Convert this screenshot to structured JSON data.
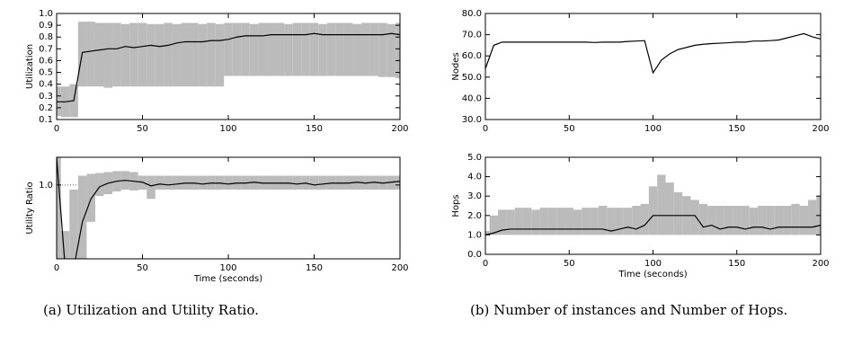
{
  "chart_data": [
    {
      "type": "line",
      "ylabel": "Utilization",
      "xlim": [
        0,
        200
      ],
      "xticks": [
        0,
        50,
        100,
        150,
        200
      ],
      "ylim": [
        0.1,
        1.0
      ],
      "yticks": [
        0.1,
        0.2,
        0.3,
        0.4,
        0.5,
        0.6,
        0.7,
        0.8,
        0.9,
        {
          "value": 1,
          "label": "1.0"
        }
      ],
      "color": "#000000",
      "band_color": "#bbbbbb",
      "x": [
        0,
        5,
        10,
        15,
        20,
        25,
        30,
        35,
        40,
        45,
        50,
        55,
        60,
        65,
        70,
        75,
        80,
        85,
        90,
        95,
        100,
        105,
        110,
        115,
        120,
        125,
        130,
        135,
        140,
        145,
        150,
        155,
        160,
        165,
        170,
        175,
        180,
        185,
        190,
        195,
        200
      ],
      "values": [
        0.25,
        0.25,
        0.26,
        0.67,
        0.68,
        0.69,
        0.7,
        0.7,
        0.72,
        0.71,
        0.72,
        0.73,
        0.72,
        0.73,
        0.75,
        0.76,
        0.76,
        0.76,
        0.77,
        0.77,
        0.78,
        0.8,
        0.81,
        0.81,
        0.81,
        0.82,
        0.82,
        0.82,
        0.82,
        0.82,
        0.83,
        0.82,
        0.82,
        0.82,
        0.82,
        0.82,
        0.82,
        0.82,
        0.82,
        0.83,
        0.82
      ],
      "upper": [
        0.38,
        0.38,
        0.4,
        0.93,
        0.93,
        0.92,
        0.92,
        0.92,
        0.91,
        0.92,
        0.92,
        0.91,
        0.91,
        0.92,
        0.91,
        0.92,
        0.92,
        0.91,
        0.92,
        0.91,
        0.92,
        0.92,
        0.92,
        0.91,
        0.92,
        0.92,
        0.92,
        0.91,
        0.92,
        0.92,
        0.92,
        0.91,
        0.92,
        0.92,
        0.92,
        0.91,
        0.92,
        0.92,
        0.92,
        0.91,
        0.92
      ],
      "lower": [
        0.13,
        0.12,
        0.12,
        0.38,
        0.38,
        0.38,
        0.37,
        0.38,
        0.38,
        0.38,
        0.38,
        0.38,
        0.38,
        0.38,
        0.38,
        0.38,
        0.38,
        0.38,
        0.38,
        0.38,
        0.47,
        0.47,
        0.47,
        0.47,
        0.47,
        0.47,
        0.47,
        0.47,
        0.47,
        0.47,
        0.47,
        0.47,
        0.47,
        0.47,
        0.47,
        0.47,
        0.47,
        0.47,
        0.46,
        0.46,
        0.45
      ]
    },
    {
      "type": "line",
      "ylabel": "Utility Ratio",
      "xlabel": "Time (seconds)",
      "xlim": [
        0,
        200
      ],
      "xticks": [
        0,
        50,
        100,
        150,
        200
      ],
      "ylim": [
        0.2,
        1.3
      ],
      "yticks": [
        {
          "value": 1,
          "label": "1.0"
        }
      ],
      "grid": true,
      "color": "#000000",
      "band_color": "#bbbbbb",
      "x": [
        0,
        5,
        10,
        15,
        20,
        25,
        30,
        35,
        40,
        45,
        50,
        55,
        60,
        65,
        70,
        75,
        80,
        85,
        90,
        95,
        100,
        105,
        110,
        115,
        120,
        125,
        130,
        135,
        140,
        145,
        150,
        155,
        160,
        165,
        170,
        175,
        180,
        185,
        190,
        195,
        200
      ],
      "values": [
        1.3,
        0.1,
        0.1,
        0.6,
        0.85,
        0.98,
        1.02,
        1.04,
        1.05,
        1.04,
        1.03,
        0.99,
        1.01,
        1.0,
        1.01,
        1.02,
        1.02,
        1.01,
        1.02,
        1.02,
        1.01,
        1.02,
        1.02,
        1.03,
        1.02,
        1.02,
        1.02,
        1.02,
        1.01,
        1.02,
        1.0,
        1.01,
        1.02,
        1.02,
        1.02,
        1.03,
        1.02,
        1.03,
        1.02,
        1.03,
        1.04
      ],
      "upper": [
        1.3,
        0.5,
        0.95,
        1.1,
        1.12,
        1.13,
        1.14,
        1.15,
        1.15,
        1.14,
        1.1,
        1.1,
        1.1,
        1.1,
        1.1,
        1.1,
        1.1,
        1.1,
        1.1,
        1.1,
        1.1,
        1.1,
        1.1,
        1.1,
        1.1,
        1.1,
        1.1,
        1.1,
        1.1,
        1.1,
        1.1,
        1.1,
        1.1,
        1.1,
        1.1,
        1.1,
        1.1,
        1.1,
        1.1,
        1.1,
        1.1
      ],
      "lower": [
        0.1,
        0.1,
        0.1,
        0.2,
        0.6,
        0.88,
        0.9,
        0.93,
        0.95,
        0.94,
        0.95,
        0.85,
        0.95,
        0.95,
        0.95,
        0.95,
        0.95,
        0.95,
        0.95,
        0.95,
        0.95,
        0.95,
        0.95,
        0.95,
        0.95,
        0.95,
        0.95,
        0.95,
        0.95,
        0.95,
        0.95,
        0.95,
        0.95,
        0.95,
        0.95,
        0.95,
        0.95,
        0.95,
        0.95,
        0.95,
        0.95
      ]
    },
    {
      "type": "line",
      "ylabel": "Nodes",
      "xlim": [
        0,
        200
      ],
      "xticks": [
        0,
        50,
        100,
        150,
        200
      ],
      "ylim": [
        30,
        80
      ],
      "yticks": [
        {
          "value": 30,
          "label": "30.0"
        },
        {
          "value": 40,
          "label": "40.0"
        },
        {
          "value": 50,
          "label": "50.0"
        },
        {
          "value": 60,
          "label": "60.0"
        },
        {
          "value": 70,
          "label": "70.0"
        },
        {
          "value": 80,
          "label": "80.0"
        }
      ],
      "color": "#000000",
      "x": [
        0,
        5,
        10,
        15,
        20,
        25,
        30,
        35,
        40,
        45,
        50,
        55,
        60,
        65,
        70,
        75,
        80,
        85,
        90,
        95,
        100,
        105,
        110,
        115,
        120,
        125,
        130,
        135,
        140,
        145,
        150,
        155,
        160,
        165,
        170,
        175,
        180,
        185,
        190,
        195,
        200
      ],
      "values": [
        54,
        65,
        66.5,
        66.5,
        66.5,
        66.5,
        66.5,
        66.5,
        66.5,
        66.5,
        66.5,
        66.5,
        66.5,
        66.3,
        66.5,
        66.5,
        66.5,
        66.8,
        67,
        67.2,
        52,
        58,
        61,
        63,
        64,
        65,
        65.5,
        65.8,
        66,
        66.2,
        66.5,
        66.5,
        67,
        67,
        67.2,
        67.5,
        68.5,
        69.5,
        70.5,
        69,
        68
      ]
    },
    {
      "type": "line",
      "ylabel": "Hops",
      "xlabel": "Time (seconds)",
      "xlim": [
        0,
        200
      ],
      "xticks": [
        0,
        50,
        100,
        150,
        200
      ],
      "ylim": [
        0,
        5
      ],
      "yticks": [
        {
          "value": 0,
          "label": "0.0"
        },
        {
          "value": 1,
          "label": "1.0"
        },
        {
          "value": 2,
          "label": "2.0"
        },
        {
          "value": 3,
          "label": "3.0"
        },
        {
          "value": 4,
          "label": "4.0"
        },
        {
          "value": 5,
          "label": "5.0"
        }
      ],
      "color": "#000000",
      "band_color": "#bbbbbb",
      "x": [
        0,
        5,
        10,
        15,
        20,
        25,
        30,
        35,
        40,
        45,
        50,
        55,
        60,
        65,
        70,
        75,
        80,
        85,
        90,
        95,
        100,
        105,
        110,
        115,
        120,
        125,
        130,
        135,
        140,
        145,
        150,
        155,
        160,
        165,
        170,
        175,
        180,
        185,
        190,
        195,
        200
      ],
      "values": [
        1.0,
        1.1,
        1.25,
        1.3,
        1.3,
        1.3,
        1.3,
        1.3,
        1.3,
        1.3,
        1.3,
        1.3,
        1.3,
        1.3,
        1.3,
        1.2,
        1.3,
        1.4,
        1.3,
        1.5,
        2.0,
        2.0,
        2.0,
        2.0,
        2.0,
        2.0,
        1.4,
        1.5,
        1.3,
        1.4,
        1.4,
        1.3,
        1.4,
        1.4,
        1.3,
        1.4,
        1.4,
        1.4,
        1.4,
        1.4,
        1.5
      ],
      "upper": [
        1.2,
        2.0,
        2.3,
        2.3,
        2.4,
        2.4,
        2.3,
        2.4,
        2.4,
        2.4,
        2.4,
        2.3,
        2.4,
        2.4,
        2.5,
        2.4,
        2.4,
        2.4,
        2.5,
        2.6,
        3.5,
        4.1,
        3.7,
        3.2,
        3.0,
        2.8,
        2.6,
        2.5,
        2.5,
        2.5,
        2.5,
        2.5,
        2.4,
        2.5,
        2.5,
        2.5,
        2.5,
        2.6,
        2.5,
        2.8,
        3.0
      ],
      "lower": [
        1,
        1,
        1,
        1,
        1,
        1,
        1,
        1,
        1,
        1,
        1,
        1,
        1,
        1,
        1,
        1,
        1,
        1,
        1,
        1,
        1,
        1,
        1,
        1,
        1,
        1,
        1,
        1,
        1,
        1,
        1,
        1,
        1,
        1,
        1,
        1,
        1,
        1,
        1,
        1,
        1
      ]
    }
  ],
  "captions": [
    "(a) Utilization and Utility Ratio.",
    "(b) Number of instances and Number of Hops."
  ]
}
